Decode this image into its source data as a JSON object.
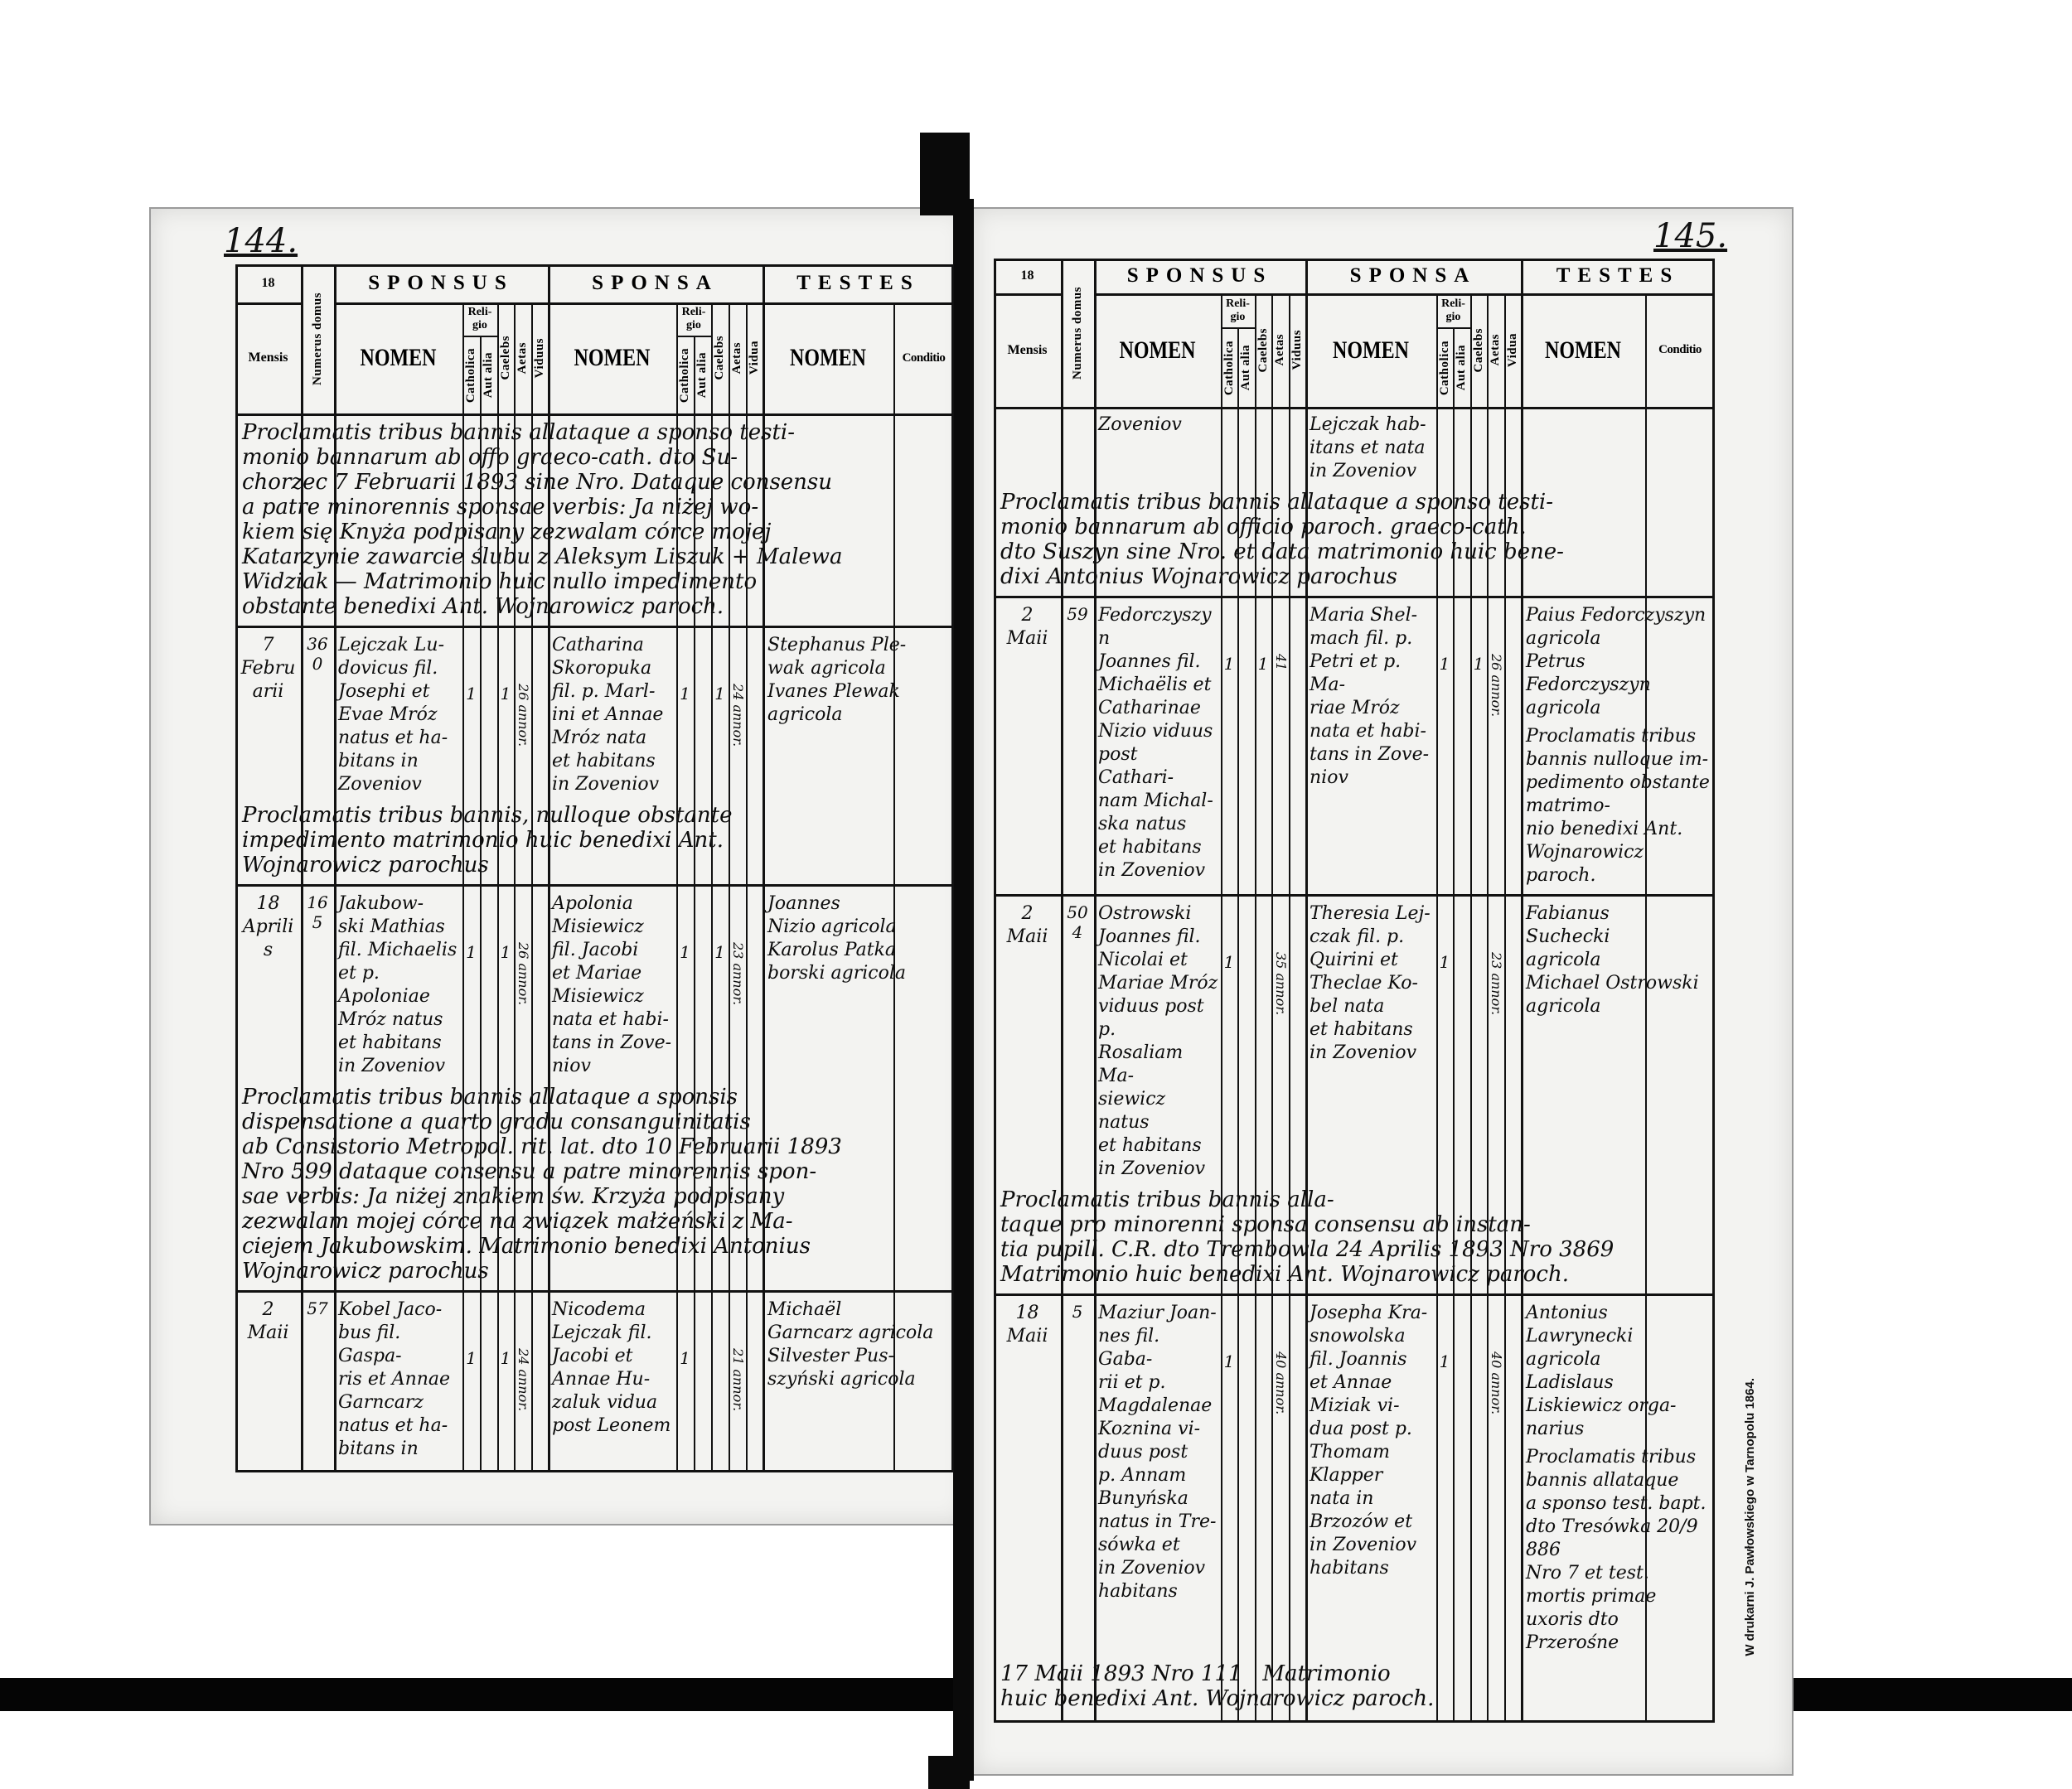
{
  "pages": [
    {
      "page_number": "144.",
      "header": {
        "year": "18",
        "mensis": "Mensis",
        "numerus_domus": "Numerus domus",
        "sponsus": "SPONSUS",
        "sponsa": "SPONSA",
        "testes": "TESTES",
        "nomen": "NOMEN",
        "religio": "Reli-\ngio",
        "catholica": "Catholica",
        "aut_alia": "Aut alia",
        "caelebs": "Caelebs",
        "aetas": "Aetas",
        "viduus": "Viduus",
        "vidua": "Vidua",
        "conditio": "Conditio"
      },
      "blocks": [
        {
          "type": "note",
          "text": "Proclamatis tribus bannis allataque a sponso testi-\nmonio bannarum ab offo graeco-cath. dto Su-\nchorzec 7 Februarii 1893 sine Nro. Dataque consensu\na patre minorennis sponsae verbis: Ja niżej wo-\nkiem się Knyża podpisany zezwalam córce mojej\nKatarzynie zawarcie ślubu z Aleksym Liszuk + Malewa\nWidziak — Matrimonio huic nullo impedimento\nobstante benedixi Ant. Wojnarowicz paroch."
        },
        {
          "type": "entry",
          "mensis": "7\nFebruarii",
          "domus": "360",
          "sponsus": {
            "nomen": "Lejczak Lu-\ndovicus fil.\nJosephi et\nEvae Mróz\nnatus et ha-\nbitans in\nZoveniov",
            "catholica": "1",
            "caelebs": "1",
            "aetas": "26 annor."
          },
          "sponsa": {
            "nomen": "Catharina\nSkoropuka\nfil. p. Marl-\nini et Annae\nMróz nata\net habitans\nin Zoveniov",
            "catholica": "1",
            "caelebs": "1",
            "aetas": "24 annor."
          },
          "testes": {
            "nomen": "Stephanus Ple-\nwak agricola\nIvanes Plewak\nagricola"
          }
        },
        {
          "type": "note",
          "text": "Proclamatis tribus bannis, nulloque obstante\nimpedimento matrimonio huic benedixi Ant.\nWojnarowicz parochus"
        },
        {
          "type": "entry",
          "mensis": "18\nAprilis",
          "domus": "165",
          "sponsus": {
            "nomen": "Jakubow-\nski Mathias\nfil. Michaelis\net p. Apoloniae\nMróz natus\net habitans\nin Zoveniov",
            "catholica": "1",
            "caelebs": "1",
            "aetas": "26 annor."
          },
          "sponsa": {
            "nomen": "Apolonia\nMisiewicz\nfil. Jacobi\net Mariae\nMisiewicz\nnata et habi-\ntans in Zove-\nniov",
            "catholica": "1",
            "caelebs": "1",
            "aetas": "23 annor."
          },
          "testes": {
            "nomen": "Joannes\nNizio agricola\nKarolus Patka\nborski agricola"
          }
        },
        {
          "type": "note",
          "text": "Proclamatis tribus bannis allataque a sponsis\ndispensatione a quarto gradu consanguinitatis\nab Consistorio Metropol. rit. lat. dto 10 Februarii 1893\nNro 599 dataque consensu a patre minorennis spon-\nsae verbis: Ja niżej znakiem św. Krzyża podpisany\nzezwalam mojej córce na związek małżeński z Ma-\nciejem Jakubowskim. Matrimonio benedixi Antonius\nWojnarowicz parochus"
        },
        {
          "type": "entry",
          "mensis": "2\nMaii",
          "domus": "57",
          "sponsus": {
            "nomen": "Kobel Jaco-\nbus fil. Gaspa-\nris et Annae\nGarncarz\nnatus et ha-\nbitans in",
            "catholica": "1",
            "caelebs": "1",
            "aetas": "24 annor."
          },
          "sponsa": {
            "nomen": "Nicodema\nLejczak fil.\nJacobi et\nAnnae Hu-\nzaluk vidua\npost Leonem",
            "catholica": "1",
            "caelebs": "",
            "aetas": "21 annor."
          },
          "testes": {
            "nomen": "Michaël\nGarncarz agricola\nSilvester Pus-\nszyński agricola"
          }
        }
      ]
    },
    {
      "page_number": "145.",
      "header": {
        "year": "18",
        "mensis": "Mensis",
        "numerus_domus": "Numerus domus",
        "sponsus": "SPONSUS",
        "sponsa": "SPONSA",
        "testes": "TESTES",
        "nomen": "NOMEN",
        "religio": "Reli-\ngio",
        "catholica": "Catholica",
        "aut_alia": "Aut alia",
        "caelebs": "Caelebs",
        "aetas": "Aetas",
        "viduus": "Viduus",
        "vidua": "Vidua",
        "conditio": "Conditio"
      },
      "blocks": [
        {
          "type": "continuation",
          "sponsus": "Zoveniov",
          "sponsa": "Lejczak hab-\nitans et nata\nin Zoveniov"
        },
        {
          "type": "note",
          "text": "Proclamatis tribus bannis allataque a sponso testi-\nmonio bannarum ab officio paroch. graeco-cath.\ndto Suszyn sine Nro. et data matrimonio huic bene-\ndixi Antonius Wojnarowicz parochus"
        },
        {
          "type": "entry",
          "mensis": "2\nMaii",
          "domus": "59",
          "sponsus": {
            "nomen": "Fedorczyszyn\nJoannes fil.\nMichaëlis et\nCatharinae\nNizio viduus\npost Cathari-\nnam Michal-\nska natus\net habitans\nin Zoveniov",
            "catholica": "1",
            "caelebs": "1",
            "aetas": "41"
          },
          "sponsa": {
            "nomen": "Maria Shel-\nmach fil. p.\nPetri et p. Ma-\nriae Mróz\nnata et habi-\ntans in Zove-\nniov",
            "catholica": "1",
            "caelebs": "1",
            "aetas": "26 annor."
          },
          "testes": {
            "nomen": "Paius Fedorczyszyn\nagricola\nPetrus Fedorczyszyn\nagricola"
          }
        },
        {
          "type": "note",
          "text": "Proclamatis tribus\nbannis nulloque im-\npedimento obstante matrimo-\nnio benedixi Ant. Wojnarowicz paroch."
        },
        {
          "type": "entry",
          "mensis": "2\nMaii",
          "domus": "504",
          "sponsus": {
            "nomen": "Ostrowski\nJoannes fil.\nNicolai et\nMariae Mróz\nviduus post p.\nRosaliam Ma-\nsiewicz natus\net habitans\nin Zoveniov",
            "catholica": "1",
            "caelebs": "",
            "aetas": "35 annor."
          },
          "sponsa": {
            "nomen": "Theresia Lej-\nczak fil. p.\nQuirini et\nTheclae Ko-\nbel nata\net habitans\nin Zoveniov",
            "catholica": "1",
            "caelebs": "",
            "aetas": "23 annor."
          },
          "testes": {
            "nomen": "Fabianus\nSuchecki\nagricola\nMichael Ostrowski\nagricola"
          }
        },
        {
          "type": "note",
          "text": "Proclamatis tribus bannis alla-\ntaque pro minorenni sponsa consensu ab instan-\ntia pupill. C.R. dto Trembowla 24 Aprilis 1893 Nro 3869\nMatrimonio huic benedixi Ant. Wojnarowicz paroch."
        },
        {
          "type": "entry",
          "mensis": "18\nMaii",
          "domus": "5",
          "sponsus": {
            "nomen": "Maziur Joan-\nnes fil. Gaba-\nrii et p.\nMagdalenae\nKoznina vi-\nduus post\np. Annam\nBunyńska\nnatus in Tre-\nsówka et\nin Zoveniov\nhabitans",
            "catholica": "1",
            "caelebs": "",
            "aetas": "40 annor."
          },
          "sponsa": {
            "nomen": "Josepha Kra-\nsnowolska\nfil. Joannis\net Annae\nMiziak vi-\ndua post p.\nThomam\nKlapper\nnata in\nBrzozów et\nin Zoveniov\nhabitans",
            "catholica": "1",
            "caelebs": "",
            "aetas": "40 annor."
          },
          "testes": {
            "nomen": "Antonius\nLawrynecki\nagricola\nLadislaus\nLiskiewicz orga-\nnarius"
          }
        },
        {
          "type": "note",
          "text": "Proclamatis tribus\nbannis allataque\na sponso test. bapt.\ndto Tresówka 20/9 886\nNro 7 et test. mortis primae\nuxoris dto Przerośne"
        },
        {
          "type": "note",
          "text": "17 Maii 1893 Nro 111   Matrimonio\nhuic benedixi Ant. Wojnarowicz paroch."
        }
      ],
      "printer_credit": "W drukarni J. Pawłowskiego w Tarnopolu 1864."
    }
  ],
  "colors": {
    "ink": "#0c0c0c",
    "paper": "#f3f3f1",
    "spine": "#0a0a0a"
  }
}
